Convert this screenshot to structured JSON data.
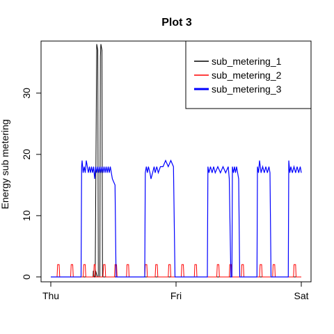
{
  "chart_data": {
    "type": "line",
    "title": "Plot 3",
    "xlabel": "",
    "ylabel": "Energy sub metering",
    "x_ticks": [
      "Thu",
      "Fri",
      "Sat"
    ],
    "x_unit": "hours since Thu 00:00",
    "xlim": [
      0,
      48
    ],
    "y_ticks": [
      0,
      10,
      20,
      30
    ],
    "ylim": [
      -0.8,
      38.5
    ],
    "grid": false,
    "legend_position": "top-right",
    "series": [
      {
        "name": "sub_metering_1",
        "color": "#000000",
        "points": [
          [
            0,
            0
          ],
          [
            8.1,
            0
          ],
          [
            8.15,
            1
          ],
          [
            8.3,
            0
          ],
          [
            8.55,
            0
          ],
          [
            8.6,
            1
          ],
          [
            8.9,
            0
          ],
          [
            8.5,
            0
          ],
          [
            8.8,
            38
          ],
          [
            9.0,
            37
          ],
          [
            9.1,
            0
          ],
          [
            9.4,
            0
          ],
          [
            9.5,
            36
          ],
          [
            9.6,
            38
          ],
          [
            9.8,
            37
          ],
          [
            9.9,
            0
          ],
          [
            10.5,
            0
          ],
          [
            48,
            0
          ]
        ]
      },
      {
        "name": "sub_metering_2",
        "color": "#ff0000",
        "points": [
          [
            0,
            0
          ],
          [
            1.2,
            0
          ],
          [
            1.3,
            2
          ],
          [
            1.6,
            2
          ],
          [
            1.7,
            0
          ],
          [
            3.8,
            0
          ],
          [
            3.9,
            2
          ],
          [
            4.2,
            2
          ],
          [
            4.3,
            0
          ],
          [
            6.2,
            0
          ],
          [
            6.3,
            2
          ],
          [
            6.6,
            2
          ],
          [
            6.7,
            0
          ],
          [
            8.2,
            0
          ],
          [
            8.3,
            2
          ],
          [
            8.5,
            2
          ],
          [
            8.6,
            0
          ],
          [
            10.0,
            0
          ],
          [
            10.1,
            2
          ],
          [
            10.4,
            2
          ],
          [
            10.5,
            0
          ],
          [
            12.2,
            0
          ],
          [
            12.3,
            2
          ],
          [
            12.6,
            2
          ],
          [
            12.7,
            0
          ],
          [
            14.5,
            0
          ],
          [
            14.6,
            2
          ],
          [
            14.9,
            2
          ],
          [
            15.0,
            0
          ],
          [
            18.0,
            0
          ],
          [
            18.1,
            2
          ],
          [
            18.4,
            2
          ],
          [
            18.5,
            0
          ],
          [
            20.0,
            0
          ],
          [
            20.1,
            2
          ],
          [
            20.4,
            2
          ],
          [
            20.5,
            0
          ],
          [
            22.5,
            0
          ],
          [
            22.6,
            2
          ],
          [
            22.9,
            2
          ],
          [
            23.0,
            0
          ],
          [
            25.0,
            0
          ],
          [
            25.1,
            2
          ],
          [
            25.4,
            2
          ],
          [
            25.5,
            0
          ],
          [
            27.5,
            0
          ],
          [
            27.6,
            2
          ],
          [
            27.9,
            2
          ],
          [
            28.0,
            0
          ],
          [
            31.8,
            0
          ],
          [
            31.9,
            2
          ],
          [
            32.2,
            2
          ],
          [
            32.3,
            0
          ],
          [
            34.2,
            0
          ],
          [
            34.3,
            2
          ],
          [
            34.6,
            2
          ],
          [
            34.7,
            0
          ],
          [
            36.5,
            0
          ],
          [
            36.6,
            2
          ],
          [
            36.9,
            2
          ],
          [
            37.0,
            0
          ],
          [
            40.0,
            0
          ],
          [
            40.1,
            2
          ],
          [
            40.4,
            2
          ],
          [
            40.5,
            0
          ],
          [
            42.5,
            0
          ],
          [
            42.6,
            2
          ],
          [
            42.9,
            2
          ],
          [
            43.0,
            0
          ],
          [
            46.5,
            0
          ],
          [
            46.6,
            2
          ],
          [
            46.9,
            2
          ],
          [
            47.0,
            0
          ],
          [
            48,
            0
          ]
        ]
      },
      {
        "name": "sub_metering_3",
        "color": "#0000ff",
        "points": [
          [
            0,
            0
          ],
          [
            5.8,
            0
          ],
          [
            5.9,
            18
          ],
          [
            6.0,
            19
          ],
          [
            6.2,
            17
          ],
          [
            6.4,
            18
          ],
          [
            6.6,
            17
          ],
          [
            6.8,
            19
          ],
          [
            7.0,
            18
          ],
          [
            7.2,
            17
          ],
          [
            7.4,
            18
          ],
          [
            7.6,
            17
          ],
          [
            7.8,
            18
          ],
          [
            8.0,
            17
          ],
          [
            8.2,
            18
          ],
          [
            8.4,
            16
          ],
          [
            8.6,
            18
          ],
          [
            8.8,
            17
          ],
          [
            9.0,
            18
          ],
          [
            9.2,
            17
          ],
          [
            9.4,
            18
          ],
          [
            9.6,
            17
          ],
          [
            9.8,
            18
          ],
          [
            10.0,
            17
          ],
          [
            10.2,
            18
          ],
          [
            10.4,
            17
          ],
          [
            10.6,
            18
          ],
          [
            10.8,
            17
          ],
          [
            11.0,
            18
          ],
          [
            11.2,
            17
          ],
          [
            11.4,
            18
          ],
          [
            11.6,
            17
          ],
          [
            11.8,
            16
          ],
          [
            12.3,
            15
          ],
          [
            12.5,
            0
          ],
          [
            18.0,
            0
          ],
          [
            18.1,
            17
          ],
          [
            18.3,
            18
          ],
          [
            18.5,
            17
          ],
          [
            18.7,
            18
          ],
          [
            19.0,
            17
          ],
          [
            19.2,
            16
          ],
          [
            19.5,
            17
          ],
          [
            19.8,
            18
          ],
          [
            20.0,
            17
          ],
          [
            20.3,
            18
          ],
          [
            20.6,
            17
          ],
          [
            21.0,
            18
          ],
          [
            21.5,
            18
          ],
          [
            22.0,
            19
          ],
          [
            22.5,
            18
          ],
          [
            23.0,
            19
          ],
          [
            23.5,
            18
          ],
          [
            23.8,
            0
          ],
          [
            30.0,
            0
          ],
          [
            30.1,
            18
          ],
          [
            30.3,
            17
          ],
          [
            30.6,
            18
          ],
          [
            30.9,
            17
          ],
          [
            31.2,
            18
          ],
          [
            31.5,
            17
          ],
          [
            32.0,
            18
          ],
          [
            32.5,
            17
          ],
          [
            33.0,
            18
          ],
          [
            33.5,
            17
          ],
          [
            34.0,
            18
          ],
          [
            34.2,
            16
          ],
          [
            34.5,
            0
          ],
          [
            34.7,
            0
          ],
          [
            34.8,
            18
          ],
          [
            35.0,
            17
          ],
          [
            35.2,
            18
          ],
          [
            35.4,
            17
          ],
          [
            35.6,
            18
          ],
          [
            35.8,
            17
          ],
          [
            36.0,
            16
          ],
          [
            36.2,
            0
          ],
          [
            39.5,
            0
          ],
          [
            39.6,
            18
          ],
          [
            39.8,
            17
          ],
          [
            40.0,
            19
          ],
          [
            40.3,
            17
          ],
          [
            40.6,
            18
          ],
          [
            40.9,
            17
          ],
          [
            41.2,
            18
          ],
          [
            41.5,
            17
          ],
          [
            41.8,
            18
          ],
          [
            42.0,
            17
          ],
          [
            42.2,
            0
          ],
          [
            45.5,
            0
          ],
          [
            45.6,
            19
          ],
          [
            45.8,
            17
          ],
          [
            46.0,
            18
          ],
          [
            46.3,
            17
          ],
          [
            46.6,
            18
          ],
          [
            46.9,
            17
          ],
          [
            47.2,
            18
          ],
          [
            47.5,
            17
          ],
          [
            47.8,
            18
          ],
          [
            48,
            17
          ]
        ]
      }
    ]
  }
}
